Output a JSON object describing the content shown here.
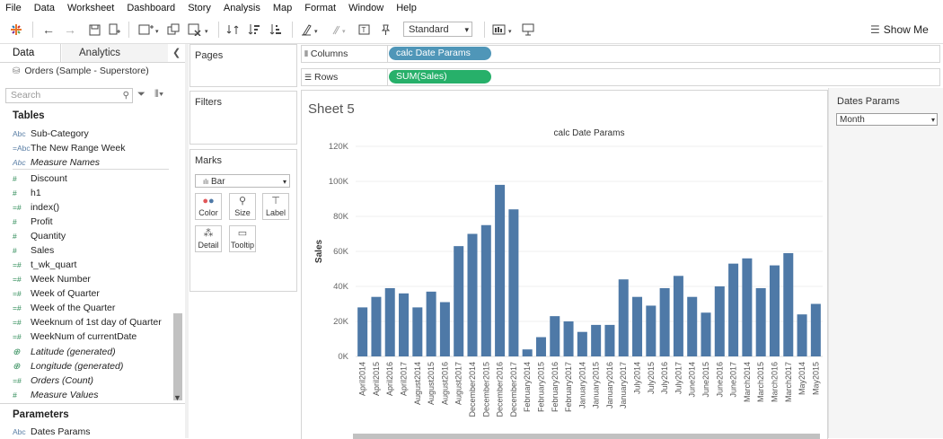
{
  "menu": [
    "File",
    "Data",
    "Worksheet",
    "Dashboard",
    "Story",
    "Analysis",
    "Map",
    "Format",
    "Window",
    "Help"
  ],
  "toolbar": {
    "standard_label": "Standard",
    "show_me_label": "Show Me"
  },
  "left_pane": {
    "tab_data": "Data",
    "tab_analytics": "Analytics",
    "datasource": "Orders (Sample - Superstore)",
    "search_placeholder": "Search",
    "tables_heading": "Tables",
    "fields": [
      {
        "icon": "Abc",
        "label": "Sub-Category",
        "italic": false
      },
      {
        "icon": "=Abc",
        "label": "The New Range Week",
        "italic": false
      },
      {
        "icon": "Abc",
        "label": "Measure Names",
        "italic": true
      },
      {
        "icon": "#",
        "label": "Discount",
        "italic": false
      },
      {
        "icon": "#",
        "label": "h1",
        "italic": false
      },
      {
        "icon": "=#",
        "label": "index()",
        "italic": false
      },
      {
        "icon": "#",
        "label": "Profit",
        "italic": false
      },
      {
        "icon": "#",
        "label": "Quantity",
        "italic": false
      },
      {
        "icon": "#",
        "label": "Sales",
        "italic": false
      },
      {
        "icon": "=#",
        "label": "t_wk_quart",
        "italic": false
      },
      {
        "icon": "=#",
        "label": "Week Number",
        "italic": false
      },
      {
        "icon": "=#",
        "label": "Week of Quarter",
        "italic": false
      },
      {
        "icon": "=#",
        "label": "Week of the Quarter",
        "italic": false
      },
      {
        "icon": "=#",
        "label": "Weeknum of 1st day of Quarter",
        "italic": false
      },
      {
        "icon": "=#",
        "label": "WeekNum of currentDate",
        "italic": false
      },
      {
        "icon": "globe",
        "label": "Latitude (generated)",
        "italic": true
      },
      {
        "icon": "globe",
        "label": "Longitude (generated)",
        "italic": true
      },
      {
        "icon": "=#",
        "label": "Orders (Count)",
        "italic": true
      },
      {
        "icon": "#",
        "label": "Measure Values",
        "italic": true
      }
    ],
    "parameters_heading": "Parameters",
    "parameters": [
      {
        "icon": "Abc",
        "label": "Dates Params"
      }
    ]
  },
  "cards": {
    "pages_title": "Pages",
    "filters_title": "Filters",
    "marks_title": "Marks",
    "mark_type": "Bar",
    "mark_buttons": [
      "Color",
      "Size",
      "Label",
      "Detail",
      "Tooltip"
    ]
  },
  "shelves": {
    "columns_label": "Columns",
    "columns_pill": "calc Date Params",
    "rows_label": "Rows",
    "rows_pill": "SUM(Sales)"
  },
  "view": {
    "sheet_title": "Sheet 5"
  },
  "right_pane": {
    "title": "Dates Params",
    "selected": "Month"
  },
  "colors": {
    "bar": "#4e79a7",
    "columns_pill": "#4f96b8",
    "rows_pill": "#27b06a"
  },
  "chart_data": {
    "type": "bar",
    "title": "calc Date Params",
    "xlabel": "",
    "ylabel": "Sales",
    "ylim": [
      0,
      120000
    ],
    "yticks": [
      "0K",
      "20K",
      "40K",
      "60K",
      "80K",
      "100K",
      "120K"
    ],
    "categories": [
      "April2014",
      "April2015",
      "April2016",
      "April2017",
      "August2014",
      "August2015",
      "August2016",
      "August2017",
      "December2014",
      "December2015",
      "December2016",
      "December2017",
      "February2014",
      "February2015",
      "February2016",
      "February2017",
      "January2014",
      "January2015",
      "January2016",
      "January2017",
      "July2014",
      "July2015",
      "July2016",
      "July2017",
      "June2014",
      "June2015",
      "June2016",
      "June2017",
      "March2014",
      "March2015",
      "March2016",
      "March2017",
      "May2014",
      "May2015"
    ],
    "values": [
      28000,
      34000,
      39000,
      36000,
      28000,
      37000,
      31000,
      63000,
      70000,
      75000,
      98000,
      84000,
      4000,
      11000,
      23000,
      20000,
      14000,
      18000,
      18000,
      44000,
      34000,
      29000,
      39000,
      46000,
      34000,
      25000,
      40000,
      53000,
      56000,
      39000,
      52000,
      59000,
      24000,
      30000
    ]
  }
}
